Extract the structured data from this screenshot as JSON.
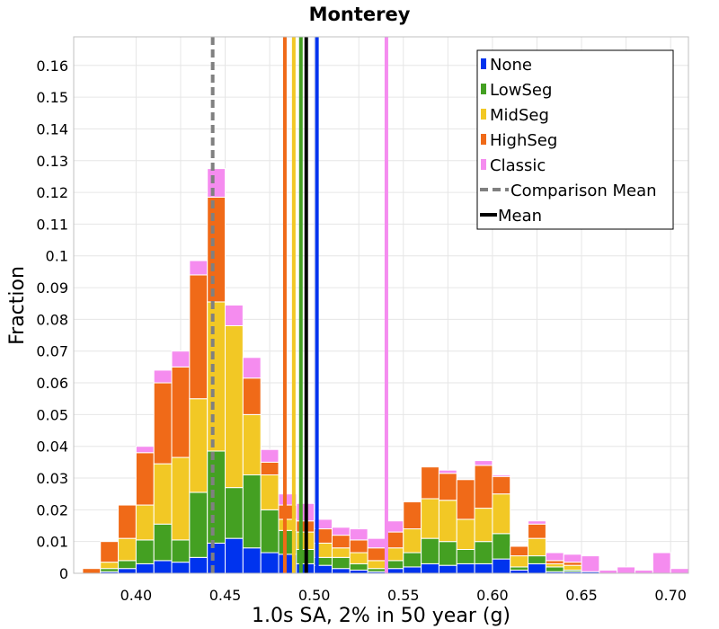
{
  "chart_data": {
    "type": "bar",
    "stacked": true,
    "title": "Monterey",
    "xlabel": "1.0s SA, 2% in 50 year (g)",
    "ylabel": "Fraction",
    "xlim": [
      0.365,
      0.71
    ],
    "ylim": [
      0,
      0.169
    ],
    "bin_width": 0.01,
    "x_ticks": [
      "0.40",
      "0.45",
      "0.50",
      "0.55",
      "0.60",
      "0.65",
      "0.70"
    ],
    "x_tick_values": [
      0.4,
      0.45,
      0.5,
      0.55,
      0.6,
      0.65,
      0.7
    ],
    "y_ticks": [
      "0",
      "0.01",
      "0.02",
      "0.03",
      "0.04",
      "0.05",
      "0.06",
      "0.07",
      "0.08",
      "0.09",
      "0.1",
      "0.11",
      "0.12",
      "0.13",
      "0.14",
      "0.15",
      "0.16"
    ],
    "y_tick_values": [
      0,
      0.01,
      0.02,
      0.03,
      0.04,
      0.05,
      0.06,
      0.07,
      0.08,
      0.09,
      0.1,
      0.11,
      0.12,
      0.13,
      0.14,
      0.15,
      0.16
    ],
    "grid": true,
    "legend_position": "top-right",
    "bin_starts": [
      0.37,
      0.38,
      0.39,
      0.4,
      0.41,
      0.42,
      0.43,
      0.44,
      0.45,
      0.46,
      0.47,
      0.48,
      0.49,
      0.5,
      0.51,
      0.52,
      0.53,
      0.54,
      0.55,
      0.56,
      0.57,
      0.58,
      0.59,
      0.6,
      0.61,
      0.62,
      0.63,
      0.64,
      0.65,
      0.66,
      0.67,
      0.68,
      0.69,
      0.7
    ],
    "series": [
      {
        "name": "None",
        "color": "#0033ee",
        "values": [
          0,
          0.0005,
          0.0015,
          0.003,
          0.004,
          0.0035,
          0.005,
          0.0095,
          0.011,
          0.008,
          0.0065,
          0.006,
          0.003,
          0.0025,
          0.0015,
          0.001,
          0.0005,
          0.0015,
          0.002,
          0.003,
          0.0025,
          0.003,
          0.003,
          0.0045,
          0.001,
          0.003,
          0.0005,
          0.0005,
          0.0005,
          0,
          0,
          0,
          0,
          0
        ]
      },
      {
        "name": "LowSeg",
        "color": "#44a022",
        "values": [
          0,
          0.001,
          0.0025,
          0.0075,
          0.0115,
          0.007,
          0.0205,
          0.029,
          0.016,
          0.023,
          0.0135,
          0.0075,
          0.0045,
          0.0025,
          0.0035,
          0.002,
          0.001,
          0.0025,
          0.0045,
          0.008,
          0.0075,
          0.0045,
          0.007,
          0.008,
          0.001,
          0.0025,
          0.0015,
          0.0005,
          0,
          0,
          0,
          0,
          0,
          0
        ]
      },
      {
        "name": "MidSeg",
        "color": "#f2c825",
        "values": [
          0,
          0.002,
          0.007,
          0.011,
          0.019,
          0.026,
          0.0295,
          0.047,
          0.051,
          0.019,
          0.011,
          0.0035,
          0.0055,
          0.0045,
          0.003,
          0.0035,
          0.0025,
          0.004,
          0.0075,
          0.0125,
          0.013,
          0.0095,
          0.0105,
          0.0125,
          0.0035,
          0.0055,
          0.001,
          0.0015,
          0,
          0,
          0,
          0,
          0,
          0
        ]
      },
      {
        "name": "HighSeg",
        "color": "#f06a18",
        "values": [
          0.0015,
          0.0065,
          0.0105,
          0.0165,
          0.0255,
          0.0285,
          0.039,
          0.033,
          0,
          0.0115,
          0.004,
          0.0045,
          0.0035,
          0.0045,
          0.004,
          0.004,
          0.004,
          0.005,
          0.0085,
          0.01,
          0.0085,
          0.0125,
          0.0135,
          0.0055,
          0.003,
          0.0045,
          0.001,
          0.001,
          0,
          0,
          0,
          0,
          0,
          0
        ]
      },
      {
        "name": "Classic",
        "color": "#f58cef",
        "values": [
          0,
          0,
          0,
          0.002,
          0.004,
          0.005,
          0.0045,
          0.009,
          0.0065,
          0.0065,
          0.004,
          0.0035,
          0.0055,
          0.003,
          0.0025,
          0.0035,
          0.003,
          0.0035,
          0,
          0,
          0.001,
          0,
          0.0015,
          0.0005,
          0,
          0.001,
          0.0025,
          0.0025,
          0.005,
          0.001,
          0.002,
          0.001,
          0.0065,
          0.0015
        ]
      }
    ],
    "vertical_lines": [
      {
        "name": "Comparison Mean",
        "x": 0.443,
        "color": "#808080",
        "style": "dashed"
      },
      {
        "name": "HighSeg mean",
        "x": 0.4835,
        "color": "#f06a18",
        "style": "solid"
      },
      {
        "name": "MidSeg mean",
        "x": 0.4885,
        "color": "#f2c825",
        "style": "solid"
      },
      {
        "name": "LowSeg mean",
        "x": 0.4925,
        "color": "#44a022",
        "style": "solid"
      },
      {
        "name": "Mean",
        "x": 0.4955,
        "color": "#000000",
        "style": "solid"
      },
      {
        "name": "None mean",
        "x": 0.5015,
        "color": "#0033ee",
        "style": "solid"
      },
      {
        "name": "Classic mean",
        "x": 0.5405,
        "color": "#f58cef",
        "style": "solid"
      }
    ],
    "legend": [
      {
        "label": "None",
        "color": "#0033ee",
        "kind": "box"
      },
      {
        "label": "LowSeg",
        "color": "#44a022",
        "kind": "box"
      },
      {
        "label": "MidSeg",
        "color": "#f2c825",
        "kind": "box"
      },
      {
        "label": "HighSeg",
        "color": "#f06a18",
        "kind": "box"
      },
      {
        "label": "Classic",
        "color": "#f58cef",
        "kind": "box"
      },
      {
        "label": "Comparison Mean",
        "color": "#808080",
        "kind": "dash"
      },
      {
        "label": "Mean",
        "color": "#000000",
        "kind": "line"
      }
    ]
  }
}
